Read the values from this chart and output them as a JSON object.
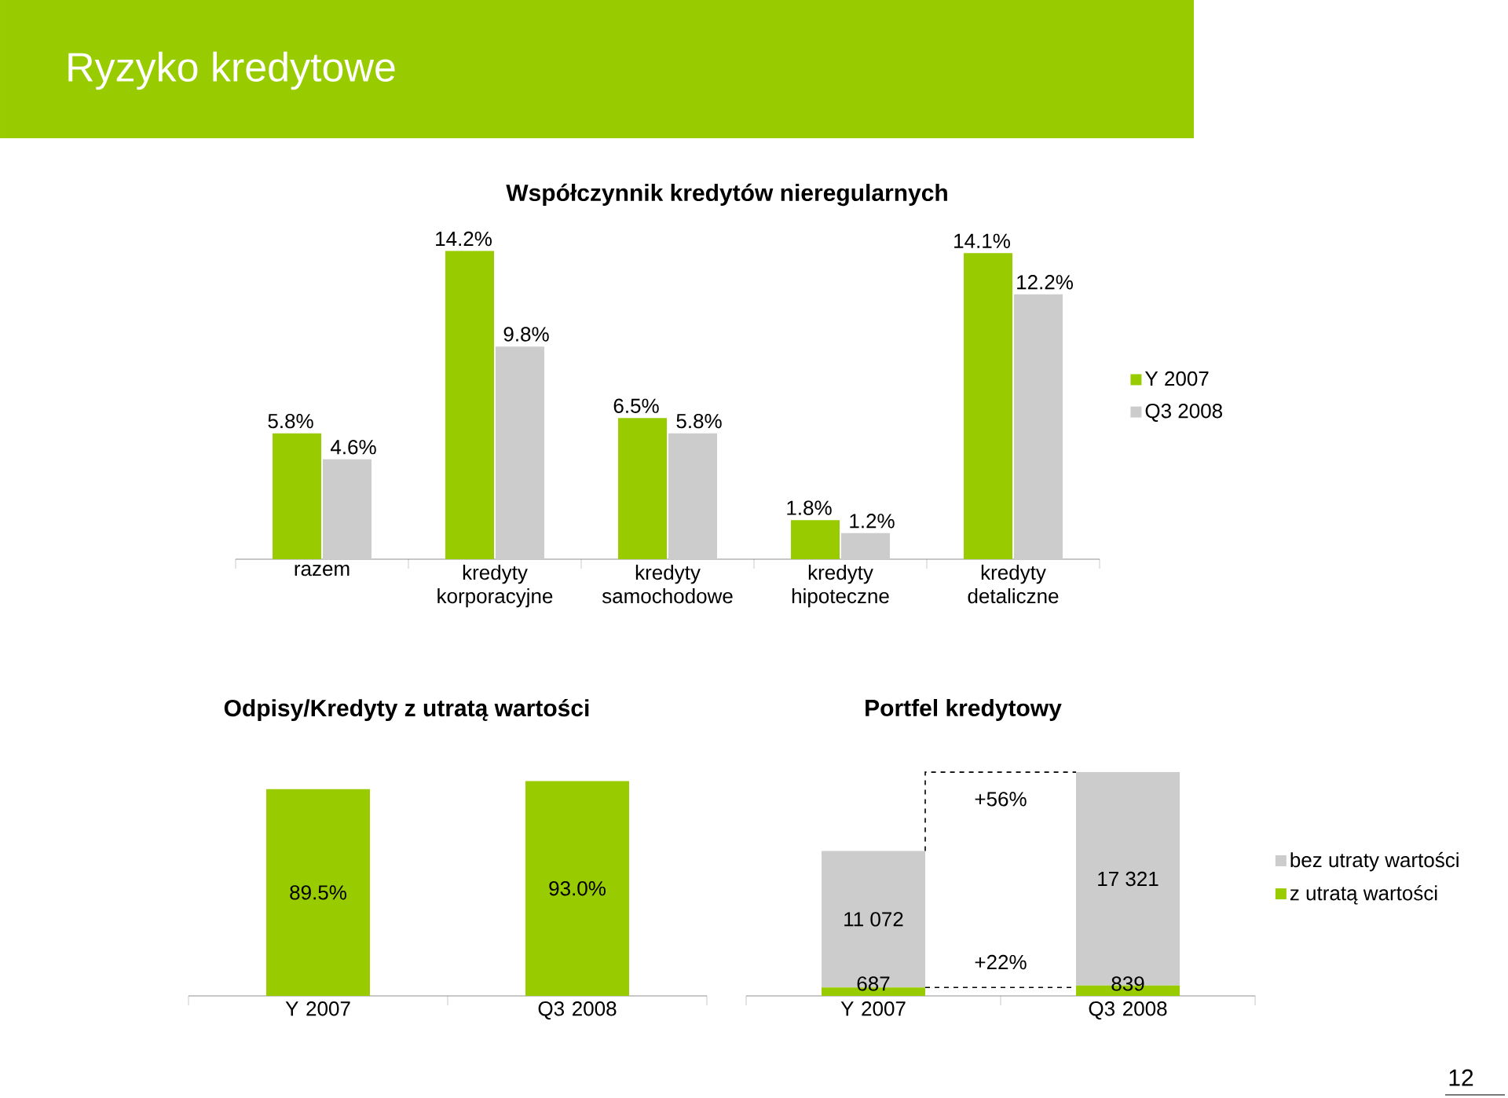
{
  "chart_data": [
    {
      "type": "bar",
      "title": "Ryzyko kredytowe",
      "subtitle": "Współczynnik kredytów nieregularnych",
      "categories": [
        "razem",
        "kredyty korporacyjne",
        "kredyty samochodowe",
        "kredyty hipoteczne",
        "kredyty detaliczne"
      ],
      "legend": "right",
      "series": [
        {
          "name": "Y 2007",
          "color": "#99cc00",
          "values": [
            5.8,
            14.2,
            6.5,
            1.8,
            14.1
          ],
          "value_labels": [
            "5.8%",
            "14.2%",
            "6.5%",
            "1.8%",
            "14.1%"
          ]
        },
        {
          "name": "Q3 2008",
          "color": "#cccccc",
          "values": [
            4.6,
            9.8,
            5.8,
            1.2,
            12.2
          ],
          "value_labels": [
            "4.6%",
            "9.8%",
            "5.8%",
            "1.2%",
            "12.2%"
          ]
        }
      ]
    },
    {
      "type": "bar",
      "title": "Odpisy/Kredyty z utratą wartości",
      "categories": [
        "Y 2007",
        "Q3 2008"
      ],
      "color": "#99cc00",
      "values": [
        89.5,
        93.0
      ],
      "value_labels": [
        "89.5%",
        "93.0%"
      ]
    },
    {
      "type": "bar",
      "title": "Portfel kredytowy",
      "stacked": true,
      "categories": [
        "Y 2007",
        "Q3 2008"
      ],
      "legend": "right",
      "annotations": [
        "+56%",
        "+22%",
        "12"
      ],
      "series": [
        {
          "name": "z utratą wartości",
          "color": "#99cc00",
          "values": [
            687,
            839
          ],
          "value_labels": [
            "687",
            "839"
          ]
        },
        {
          "name": "bez utraty wartości",
          "color": "#cccccc",
          "values": [
            11072,
            17321
          ],
          "value_labels": [
            "11 072",
            "17 321"
          ]
        }
      ]
    }
  ]
}
